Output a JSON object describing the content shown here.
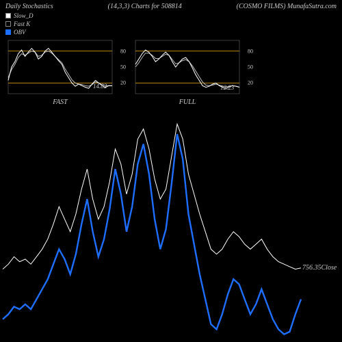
{
  "header": {
    "left": "Daily Stochastics",
    "mid": "(14,3,3) Charts for 508814",
    "right": "(COSMO FILMS) MunafaSutra.com"
  },
  "legend": {
    "slow": "Slow_D",
    "fast": "Fast K",
    "obv": "OBV"
  },
  "colors": {
    "bg": "#000000",
    "line_white": "#ffffff",
    "line_blue": "#1e6eff",
    "band": "#b8860b",
    "text": "#cccccc",
    "frame": "#666666"
  },
  "top": {
    "fast": {
      "title": "FAST",
      "last_value": "14.82",
      "yticks": [
        20,
        50,
        80
      ],
      "band_low": 20,
      "band_high": 80,
      "series_k": [
        25,
        50,
        60,
        75,
        82,
        70,
        78,
        85,
        78,
        65,
        70,
        80,
        85,
        78,
        70,
        62,
        55,
        40,
        30,
        20,
        14,
        18,
        15,
        12,
        10,
        18,
        25,
        20,
        15,
        12,
        15,
        14.82
      ],
      "series_d": [
        30,
        45,
        55,
        68,
        75,
        72,
        76,
        80,
        78,
        70,
        72,
        78,
        80,
        76,
        70,
        64,
        58,
        46,
        36,
        26,
        20,
        18,
        17,
        15,
        14,
        17,
        22,
        20,
        17,
        15,
        15,
        14.82
      ]
    },
    "full": {
      "title": "FULL",
      "last_value": "12.23",
      "yticks": [
        20,
        50,
        80
      ],
      "band_low": 20,
      "band_high": 80,
      "series_k": [
        55,
        65,
        75,
        82,
        78,
        70,
        60,
        65,
        72,
        78,
        72,
        60,
        50,
        58,
        65,
        68,
        60,
        48,
        35,
        25,
        15,
        12,
        14,
        18,
        20,
        15,
        12,
        10,
        13,
        15,
        14,
        12.23
      ],
      "series_d": [
        50,
        58,
        68,
        76,
        76,
        72,
        66,
        66,
        70,
        74,
        72,
        64,
        56,
        58,
        62,
        64,
        60,
        52,
        42,
        32,
        22,
        16,
        15,
        16,
        18,
        16,
        14,
        13,
        14,
        15,
        14,
        12.23
      ]
    }
  },
  "main": {
    "close_label": "756.35Close",
    "white": [
      40,
      42,
      45,
      43,
      44,
      42,
      45,
      48,
      52,
      58,
      65,
      60,
      55,
      62,
      72,
      80,
      68,
      60,
      65,
      75,
      88,
      82,
      70,
      78,
      92,
      96,
      88,
      76,
      68,
      72,
      85,
      98,
      92,
      78,
      70,
      62,
      55,
      48,
      46,
      48,
      52,
      55,
      53,
      50,
      48,
      50,
      52,
      48,
      45,
      43,
      42,
      41,
      40,
      40.5
    ],
    "blue": [
      20,
      22,
      25,
      24,
      26,
      24,
      28,
      32,
      36,
      42,
      48,
      44,
      38,
      46,
      58,
      68,
      55,
      45,
      52,
      64,
      80,
      70,
      55,
      65,
      82,
      90,
      78,
      60,
      48,
      56,
      74,
      94,
      84,
      62,
      50,
      38,
      28,
      18,
      16,
      22,
      30,
      36,
      34,
      28,
      22,
      26,
      32,
      26,
      20,
      16,
      14,
      15,
      22,
      28
    ]
  }
}
